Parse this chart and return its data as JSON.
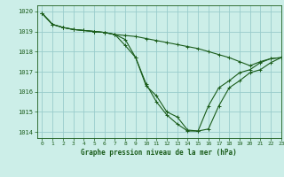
{
  "title": "Graphe pression niveau de la mer (hPa)",
  "bg_color": "#cceee8",
  "grid_color": "#99cccc",
  "line_color": "#1a5c1a",
  "xlim": [
    -0.5,
    23
  ],
  "ylim": [
    1013.7,
    1020.3
  ],
  "yticks": [
    1014,
    1015,
    1016,
    1017,
    1018,
    1019,
    1020
  ],
  "xticks": [
    0,
    1,
    2,
    3,
    4,
    5,
    6,
    7,
    8,
    9,
    10,
    11,
    12,
    13,
    14,
    15,
    16,
    17,
    18,
    19,
    20,
    21,
    22,
    23
  ],
  "series": [
    {
      "x": [
        0,
        1,
        2,
        3,
        4,
        5,
        6,
        7,
        8,
        9,
        10,
        11,
        12,
        13,
        14,
        15,
        16,
        17,
        18,
        19,
        20,
        21,
        22,
        23
      ],
      "y": [
        1019.9,
        1019.35,
        1019.2,
        1019.1,
        1019.05,
        1019.0,
        1018.95,
        1018.85,
        1018.8,
        1018.75,
        1018.65,
        1018.55,
        1018.45,
        1018.35,
        1018.25,
        1018.15,
        1018.0,
        1017.85,
        1017.7,
        1017.5,
        1017.3,
        1017.5,
        1017.65,
        1017.7
      ]
    },
    {
      "x": [
        0,
        1,
        2,
        3,
        4,
        5,
        6,
        7,
        8,
        9,
        10,
        11,
        12,
        13,
        14,
        15,
        16,
        17,
        18,
        19,
        20,
        21,
        22,
        23
      ],
      "y": [
        1019.9,
        1019.35,
        1019.2,
        1019.1,
        1019.05,
        1019.0,
        1018.95,
        1018.85,
        1018.6,
        1017.7,
        1016.3,
        1015.8,
        1015.0,
        1014.75,
        1014.1,
        1014.05,
        1015.3,
        1016.2,
        1016.55,
        1016.95,
        1017.1,
        1017.45,
        1017.65,
        1017.7
      ]
    },
    {
      "x": [
        0,
        1,
        2,
        3,
        4,
        5,
        6,
        7,
        8,
        9,
        10,
        11,
        12,
        13,
        14,
        15,
        16,
        17,
        18,
        19,
        20,
        21,
        22,
        23
      ],
      "y": [
        1019.9,
        1019.35,
        1019.2,
        1019.1,
        1019.05,
        1019.0,
        1018.95,
        1018.85,
        1018.3,
        1017.7,
        1016.4,
        1015.5,
        1014.85,
        1014.4,
        1014.05,
        1014.05,
        1014.15,
        1015.3,
        1016.2,
        1016.55,
        1016.95,
        1017.1,
        1017.45,
        1017.7
      ]
    }
  ]
}
